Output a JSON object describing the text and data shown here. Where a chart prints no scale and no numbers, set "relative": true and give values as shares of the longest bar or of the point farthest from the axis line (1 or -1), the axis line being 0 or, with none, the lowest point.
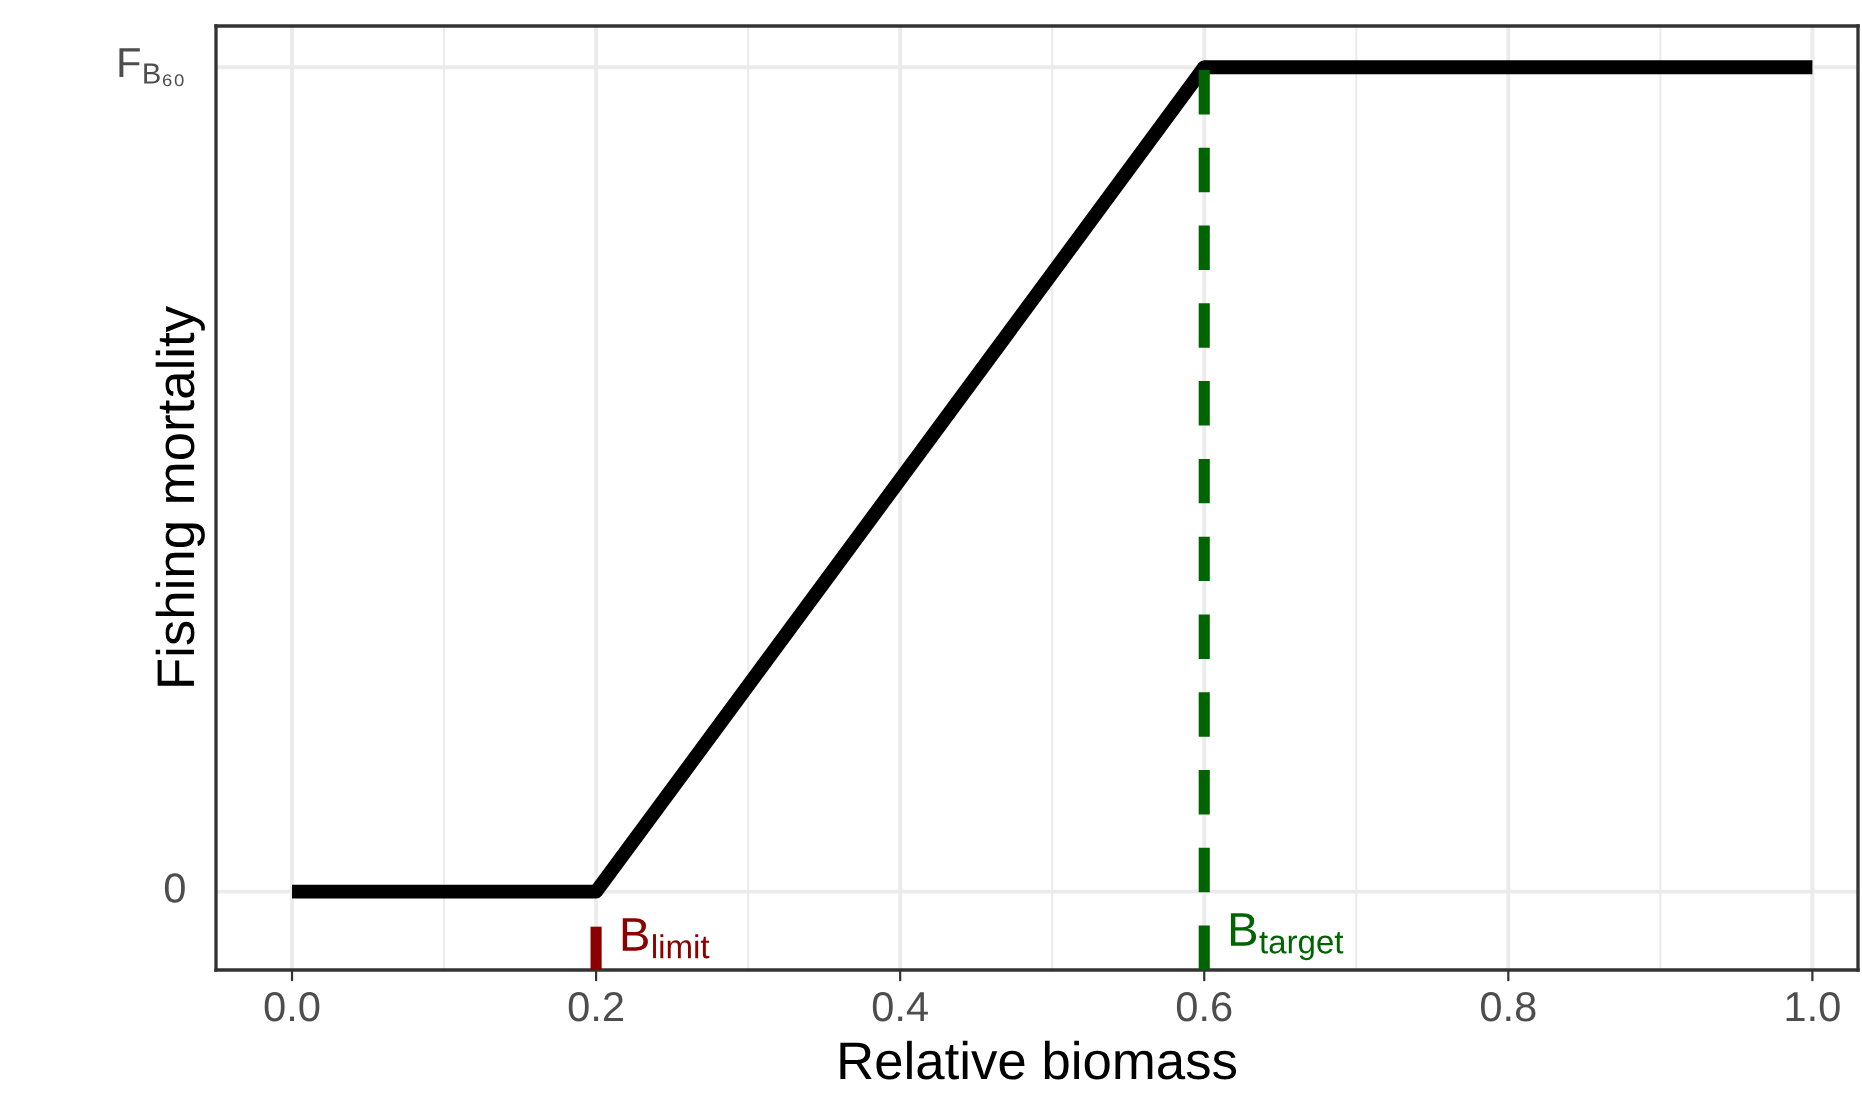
{
  "chart_data": {
    "type": "line",
    "xlabel": "Relative biomass",
    "ylabel": "Fishing mortality",
    "x": [
      0,
      0.2,
      0.6,
      1.0
    ],
    "series": [
      {
        "color": "#000000",
        "values": [
          0,
          0,
          1,
          1
        ]
      }
    ],
    "xlim": [
      -0.05,
      1.03
    ],
    "xticks": [
      {
        "value": 0,
        "label": "0.0"
      },
      0.2,
      0.4,
      0.6,
      0.8,
      {
        "value": 1,
        "label": "1.0"
      }
    ],
    "relative": true,
    "annotations": [
      "0",
      "F$_{B₆₀}$"
    ],
    "ref_lines": [
      {
        "axis": "x",
        "value": 0.2,
        "label": "B$_{limit}$",
        "color": "#8b0000",
        "line_style": "solid"
      },
      {
        "axis": "x",
        "value": 0.6,
        "label": "B$_{target}$",
        "color": "#006400",
        "line_style": "dashed"
      }
    ],
    "grid": "x",
    "line_style": "solid",
    "marker": "none",
    "legend": false
  }
}
